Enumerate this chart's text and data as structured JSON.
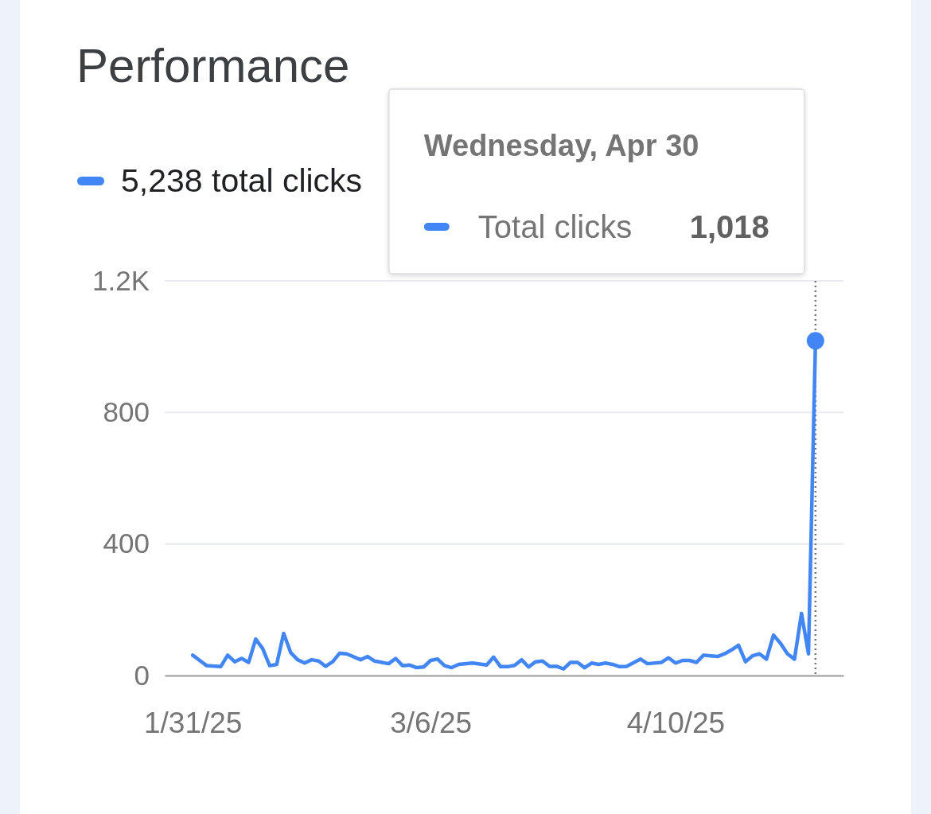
{
  "chart_data": {
    "type": "line",
    "title": "Performance",
    "x": [
      "2025-01-31",
      "2025-02-02",
      "2025-02-04",
      "2025-02-05",
      "2025-02-06",
      "2025-02-07",
      "2025-02-08",
      "2025-02-09",
      "2025-02-10",
      "2025-02-11",
      "2025-02-12",
      "2025-02-13",
      "2025-02-14",
      "2025-02-15",
      "2025-02-16",
      "2025-02-17",
      "2025-02-18",
      "2025-02-19",
      "2025-02-20",
      "2025-02-21",
      "2025-02-22",
      "2025-02-24",
      "2025-02-25",
      "2025-02-26",
      "2025-02-28",
      "2025-03-01",
      "2025-03-02",
      "2025-03-03",
      "2025-03-04",
      "2025-03-05",
      "2025-03-06",
      "2025-03-07",
      "2025-03-08",
      "2025-03-09",
      "2025-03-10",
      "2025-03-12",
      "2025-03-14",
      "2025-03-15",
      "2025-03-16",
      "2025-03-17",
      "2025-03-18",
      "2025-03-19",
      "2025-03-20",
      "2025-03-21",
      "2025-03-22",
      "2025-03-23",
      "2025-03-24",
      "2025-03-25",
      "2025-03-26",
      "2025-03-27",
      "2025-03-28",
      "2025-03-29",
      "2025-03-30",
      "2025-03-31",
      "2025-04-01",
      "2025-04-02",
      "2025-04-03",
      "2025-04-05",
      "2025-04-06",
      "2025-04-08",
      "2025-04-09",
      "2025-04-10",
      "2025-04-11",
      "2025-04-12",
      "2025-04-13",
      "2025-04-14",
      "2025-04-15",
      "2025-04-16",
      "2025-04-17",
      "2025-04-18",
      "2025-04-19",
      "2025-04-20",
      "2025-04-21",
      "2025-04-22",
      "2025-04-23",
      "2025-04-24",
      "2025-04-25",
      "2025-04-26",
      "2025-04-27",
      "2025-04-28",
      "2025-04-29",
      "2025-04-30"
    ],
    "series": [
      {
        "name": "5,238 total clicks",
        "color": "#4285f4",
        "values": [
          62,
          30,
          27,
          62,
          42,
          52,
          40,
          111,
          82,
          30,
          34,
          128,
          70,
          48,
          38,
          48,
          44,
          28,
          42,
          68,
          66,
          48,
          58,
          44,
          36,
          52,
          30,
          32,
          24,
          26,
          46,
          50,
          30,
          24,
          34,
          38,
          32,
          56,
          27,
          27,
          31,
          48,
          26,
          42,
          44,
          28,
          28,
          20,
          40,
          40,
          24,
          38,
          34,
          38,
          34,
          27,
          28,
          50,
          36,
          40,
          54,
          38,
          46,
          46,
          40,
          62,
          60,
          58,
          66,
          78,
          92,
          42,
          60,
          66,
          50,
          123,
          98,
          66,
          50,
          189,
          66,
          1018
        ]
      }
    ],
    "xlim": [
      "2025-01-27",
      "2025-05-04"
    ],
    "xticks": [
      {
        "value": "2025-01-31",
        "label": "1/31/25"
      },
      {
        "value": "2025-03-06",
        "label": "3/6/25"
      },
      {
        "value": "2025-04-10",
        "label": "4/10/25"
      }
    ],
    "ylim": [
      0,
      1200
    ],
    "yticks": [
      0,
      400,
      800,
      {
        "value": 1200,
        "label": "1.2K"
      }
    ],
    "grid": "y",
    "legend": "top left",
    "marker": "none",
    "line_style": "solid",
    "ref_lines": [
      {
        "axis": "x",
        "value": "2025-04-30",
        "color": "#757575",
        "line_style": "dotted"
      }
    ],
    "annotations": [
      "Wednesday, Apr 30",
      "Total clicks",
      "1,018"
    ]
  }
}
